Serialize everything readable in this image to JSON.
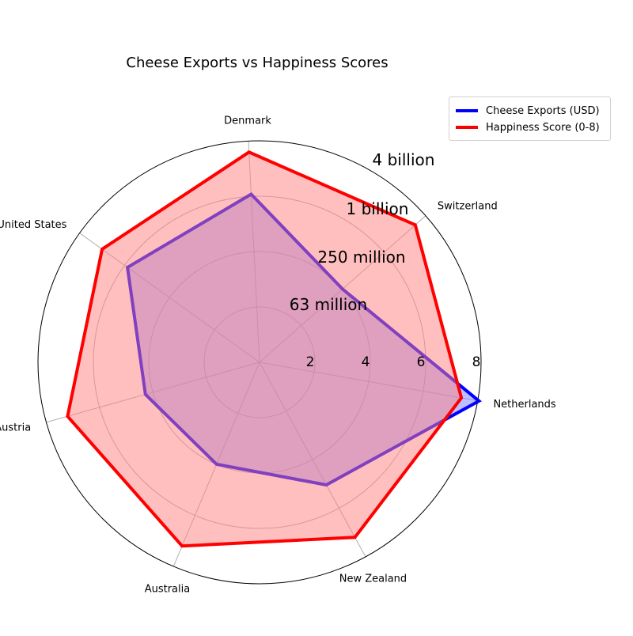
{
  "chart_data": {
    "type": "radar",
    "title": "Cheese Exports vs Happiness Scores",
    "categories": [
      "Netherlands",
      "Switzerland",
      "Denmark",
      "United States",
      "Austria",
      "Australia",
      "New Zealand"
    ],
    "series": [
      {
        "name": "Cheese Exports (USD)",
        "color": "#0000ff",
        "fill": "#7f7fff",
        "scale": "log",
        "values": [
          6000000000,
          300000000,
          1400000000,
          1200000000,
          370000000,
          300000000,
          650000000
        ]
      },
      {
        "name": "Happiness Score (0-8)",
        "color": "#ff0000",
        "fill": "#ff7f7f",
        "scale": "linear",
        "values": [
          7.4,
          7.5,
          7.6,
          7.0,
          7.2,
          7.2,
          7.2
        ]
      }
    ],
    "radial_ticks_happiness": [
      "2",
      "4",
      "6",
      "8"
    ],
    "radial_ticks_exports": [
      "63 million",
      "250 million",
      "1 billion",
      "4 billion"
    ],
    "happiness_range": [
      0,
      8
    ],
    "legend_position": "top-right",
    "grid": true
  }
}
